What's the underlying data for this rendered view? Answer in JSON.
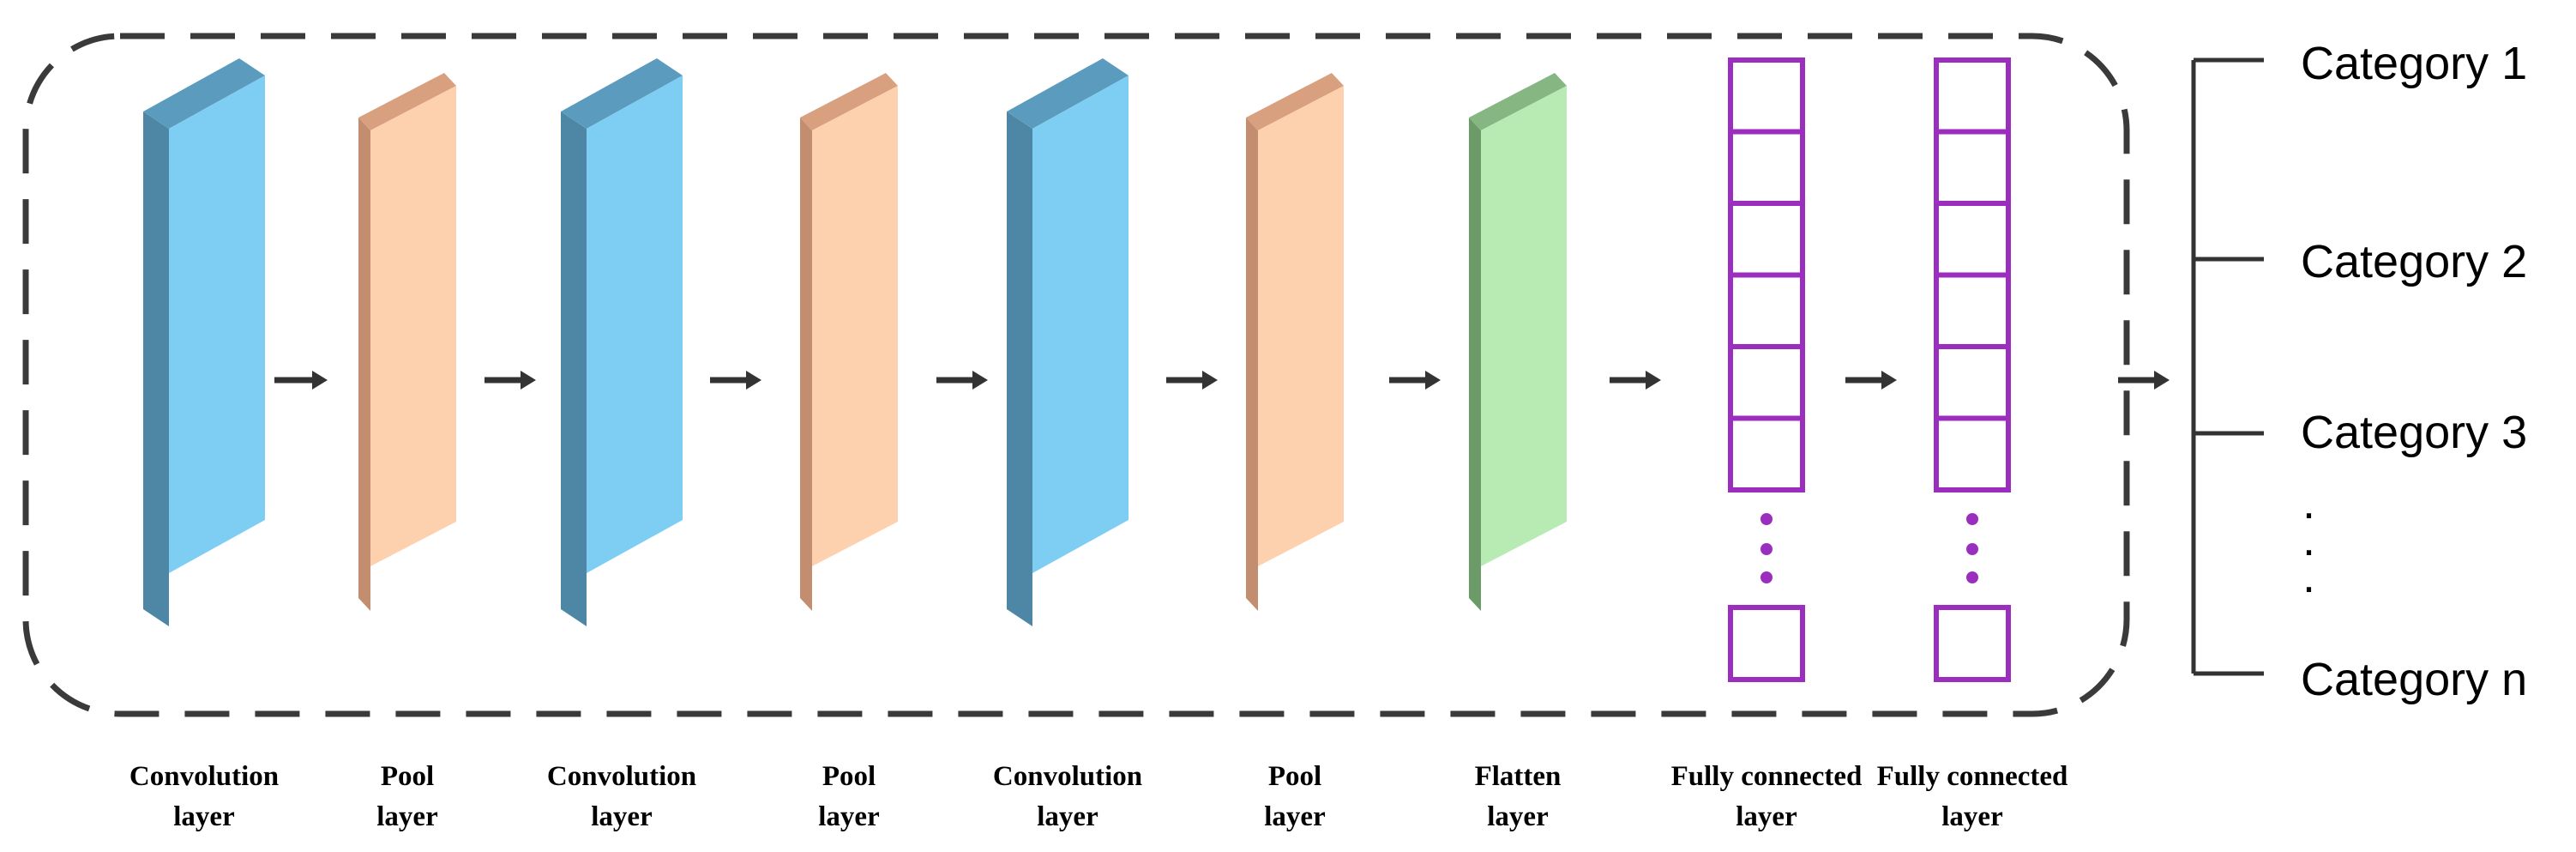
{
  "layers": [
    {
      "type": "conv",
      "line1": "Convolution",
      "line2": "layer"
    },
    {
      "type": "pool",
      "line1": "Pool",
      "line2": "layer"
    },
    {
      "type": "conv",
      "line1": "Convolution",
      "line2": "layer"
    },
    {
      "type": "pool",
      "line1": "Pool",
      "line2": "layer"
    },
    {
      "type": "conv",
      "line1": "Convolution",
      "line2": "layer"
    },
    {
      "type": "pool",
      "line1": "Pool",
      "line2": "layer"
    },
    {
      "type": "flatten",
      "line1": "Flatten",
      "line2": "layer"
    },
    {
      "type": "fc",
      "line1": "Fully connected",
      "line2": "layer"
    },
    {
      "type": "fc",
      "line1": "Fully connected",
      "line2": "layer"
    }
  ],
  "categories": [
    "Category 1",
    "Category 2",
    "Category 3",
    "Category n"
  ],
  "ellipsis_dot": ".",
  "colors": {
    "conv_front": "#7ecef4",
    "conv_side": "#4e86a6",
    "conv_top": "#5b9bbd",
    "pool_front": "#fdd0ae",
    "pool_side": "#c38d6f",
    "pool_top": "#d9a080",
    "flatten_front": "#b8ebb4",
    "flatten_side": "#6b9c67",
    "flatten_top": "#86b782",
    "fc_stroke": "#9b2dbf",
    "dashed_border": "#3a3a3a",
    "arrow": "#333333",
    "bracket": "#333333"
  }
}
